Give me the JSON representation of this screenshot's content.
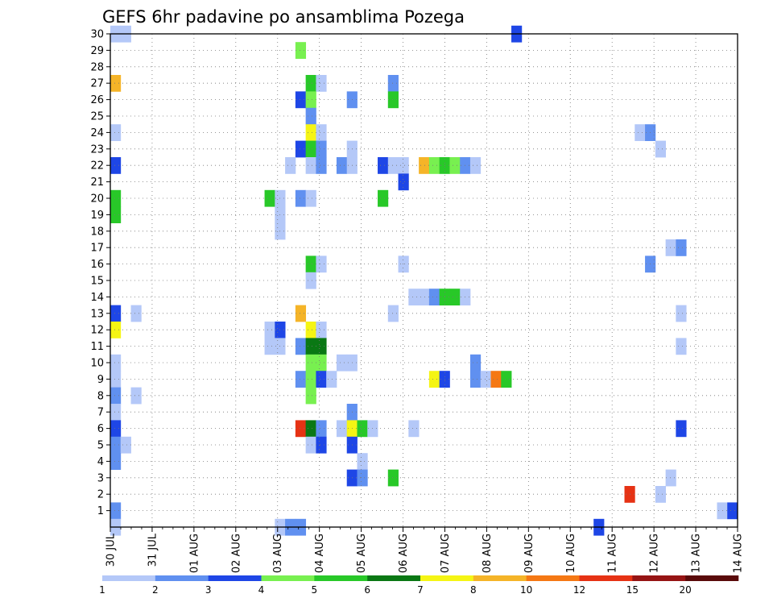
{
  "chart_data": {
    "type": "heatmap",
    "title": "GEFS 6hr padavine po ansamblima Pozega",
    "xlabel": "",
    "ylabel": "",
    "x_tick_labels": [
      "30 JUL",
      "31 JUL",
      "01 AUG",
      "02 AUG",
      "03 AUG",
      "04 AUG",
      "05 AUG",
      "06 AUG",
      "07 AUG",
      "08 AUG",
      "09 AUG",
      "10 AUG",
      "11 AUG",
      "12 AUG",
      "13 AUG",
      "14 AUG"
    ],
    "y_tick_labels": [
      "1",
      "2",
      "3",
      "4",
      "5",
      "6",
      "7",
      "8",
      "9",
      "10",
      "11",
      "12",
      "13",
      "14",
      "15",
      "16",
      "17",
      "18",
      "19",
      "20",
      "21",
      "22",
      "23",
      "24",
      "25",
      "26",
      "27",
      "28",
      "29",
      "30"
    ],
    "x_range_steps": [
      0,
      60
    ],
    "y_range": [
      0,
      30
    ],
    "grid": true,
    "levels": [
      1,
      2,
      3,
      4,
      5,
      6,
      7,
      8,
      10,
      12,
      15,
      20
    ],
    "colors": [
      "#b4c8f8",
      "#6090f0",
      "#1e46e6",
      "#78f050",
      "#28c828",
      "#0a7814",
      "#f5f514",
      "#f5b428",
      "#f57814",
      "#e63214",
      "#961414",
      "#5a0a0a"
    ],
    "colorbar_labels": [
      "1",
      "2",
      "3",
      "4",
      "5",
      "6",
      "7",
      "8",
      "10",
      "12",
      "15",
      "20"
    ],
    "cells": [
      [
        0,
        30,
        0
      ],
      [
        1,
        30,
        0
      ],
      [
        39,
        30,
        2
      ],
      [
        18,
        29,
        3
      ],
      [
        0,
        27,
        7
      ],
      [
        19,
        27,
        4
      ],
      [
        20,
        27,
        0
      ],
      [
        27,
        27,
        1
      ],
      [
        18,
        26,
        2
      ],
      [
        19,
        26,
        3
      ],
      [
        23,
        26,
        1
      ],
      [
        27,
        26,
        4
      ],
      [
        19,
        25,
        1
      ],
      [
        0,
        24,
        0
      ],
      [
        19,
        24,
        6
      ],
      [
        20,
        24,
        0
      ],
      [
        51,
        24,
        0
      ],
      [
        52,
        24,
        1
      ],
      [
        18,
        23,
        2
      ],
      [
        19,
        23,
        4
      ],
      [
        20,
        23,
        1
      ],
      [
        23,
        23,
        0
      ],
      [
        53,
        23,
        0
      ],
      [
        0,
        22,
        2
      ],
      [
        17,
        22,
        0
      ],
      [
        19,
        22,
        0
      ],
      [
        20,
        22,
        1
      ],
      [
        22,
        22,
        1
      ],
      [
        23,
        22,
        0
      ],
      [
        26,
        22,
        2
      ],
      [
        27,
        22,
        0
      ],
      [
        28,
        22,
        0
      ],
      [
        30,
        22,
        7
      ],
      [
        31,
        22,
        3
      ],
      [
        32,
        22,
        4
      ],
      [
        33,
        22,
        3
      ],
      [
        34,
        22,
        1
      ],
      [
        35,
        22,
        0
      ],
      [
        28,
        21,
        2
      ],
      [
        0,
        20,
        4
      ],
      [
        15,
        20,
        4
      ],
      [
        16,
        20,
        0
      ],
      [
        18,
        20,
        1
      ],
      [
        19,
        20,
        0
      ],
      [
        26,
        20,
        4
      ],
      [
        0,
        19,
        4
      ],
      [
        16,
        19,
        0
      ],
      [
        16,
        18,
        0
      ],
      [
        54,
        17,
        0
      ],
      [
        55,
        17,
        1
      ],
      [
        19,
        16,
        4
      ],
      [
        20,
        16,
        0
      ],
      [
        28,
        16,
        0
      ],
      [
        52,
        16,
        1
      ],
      [
        19,
        15,
        0
      ],
      [
        29,
        14,
        0
      ],
      [
        30,
        14,
        0
      ],
      [
        31,
        14,
        1
      ],
      [
        32,
        14,
        4
      ],
      [
        33,
        14,
        4
      ],
      [
        34,
        14,
        0
      ],
      [
        0,
        13,
        2
      ],
      [
        2,
        13,
        0
      ],
      [
        18,
        13,
        7
      ],
      [
        27,
        13,
        0
      ],
      [
        55,
        13,
        0
      ],
      [
        0,
        12,
        6
      ],
      [
        15,
        12,
        0
      ],
      [
        16,
        12,
        2
      ],
      [
        19,
        12,
        6
      ],
      [
        20,
        12,
        0
      ],
      [
        15,
        11,
        0
      ],
      [
        16,
        11,
        0
      ],
      [
        18,
        11,
        1
      ],
      [
        19,
        11,
        5
      ],
      [
        20,
        11,
        5
      ],
      [
        55,
        11,
        0
      ],
      [
        0,
        10,
        0
      ],
      [
        19,
        10,
        3
      ],
      [
        20,
        10,
        3
      ],
      [
        22,
        10,
        0
      ],
      [
        23,
        10,
        0
      ],
      [
        35,
        10,
        1
      ],
      [
        0,
        9,
        0
      ],
      [
        18,
        9,
        1
      ],
      [
        19,
        9,
        3
      ],
      [
        20,
        9,
        2
      ],
      [
        21,
        9,
        0
      ],
      [
        31,
        9,
        6
      ],
      [
        32,
        9,
        2
      ],
      [
        35,
        9,
        1
      ],
      [
        36,
        9,
        0
      ],
      [
        37,
        9,
        8
      ],
      [
        38,
        9,
        4
      ],
      [
        0,
        8,
        1
      ],
      [
        2,
        8,
        0
      ],
      [
        19,
        8,
        3
      ],
      [
        0,
        7,
        0
      ],
      [
        23,
        7,
        1
      ],
      [
        0,
        6,
        2
      ],
      [
        18,
        6,
        9
      ],
      [
        19,
        6,
        5
      ],
      [
        20,
        6,
        1
      ],
      [
        22,
        6,
        0
      ],
      [
        23,
        6,
        6
      ],
      [
        24,
        6,
        4
      ],
      [
        25,
        6,
        0
      ],
      [
        29,
        6,
        0
      ],
      [
        55,
        6,
        2
      ],
      [
        0,
        5,
        1
      ],
      [
        1,
        5,
        0
      ],
      [
        19,
        5,
        0
      ],
      [
        20,
        5,
        2
      ],
      [
        23,
        5,
        2
      ],
      [
        0,
        4,
        1
      ],
      [
        24,
        4,
        0
      ],
      [
        23,
        3,
        2
      ],
      [
        24,
        3,
        1
      ],
      [
        27,
        3,
        4
      ],
      [
        54,
        3,
        0
      ],
      [
        50,
        2,
        9
      ],
      [
        53,
        2,
        0
      ],
      [
        0,
        1,
        1
      ],
      [
        59,
        1,
        0
      ],
      [
        60,
        1,
        2
      ],
      [
        0,
        0,
        0
      ],
      [
        16,
        0,
        0
      ],
      [
        17,
        0,
        1
      ],
      [
        18,
        0,
        1
      ],
      [
        47,
        0,
        2
      ]
    ]
  }
}
